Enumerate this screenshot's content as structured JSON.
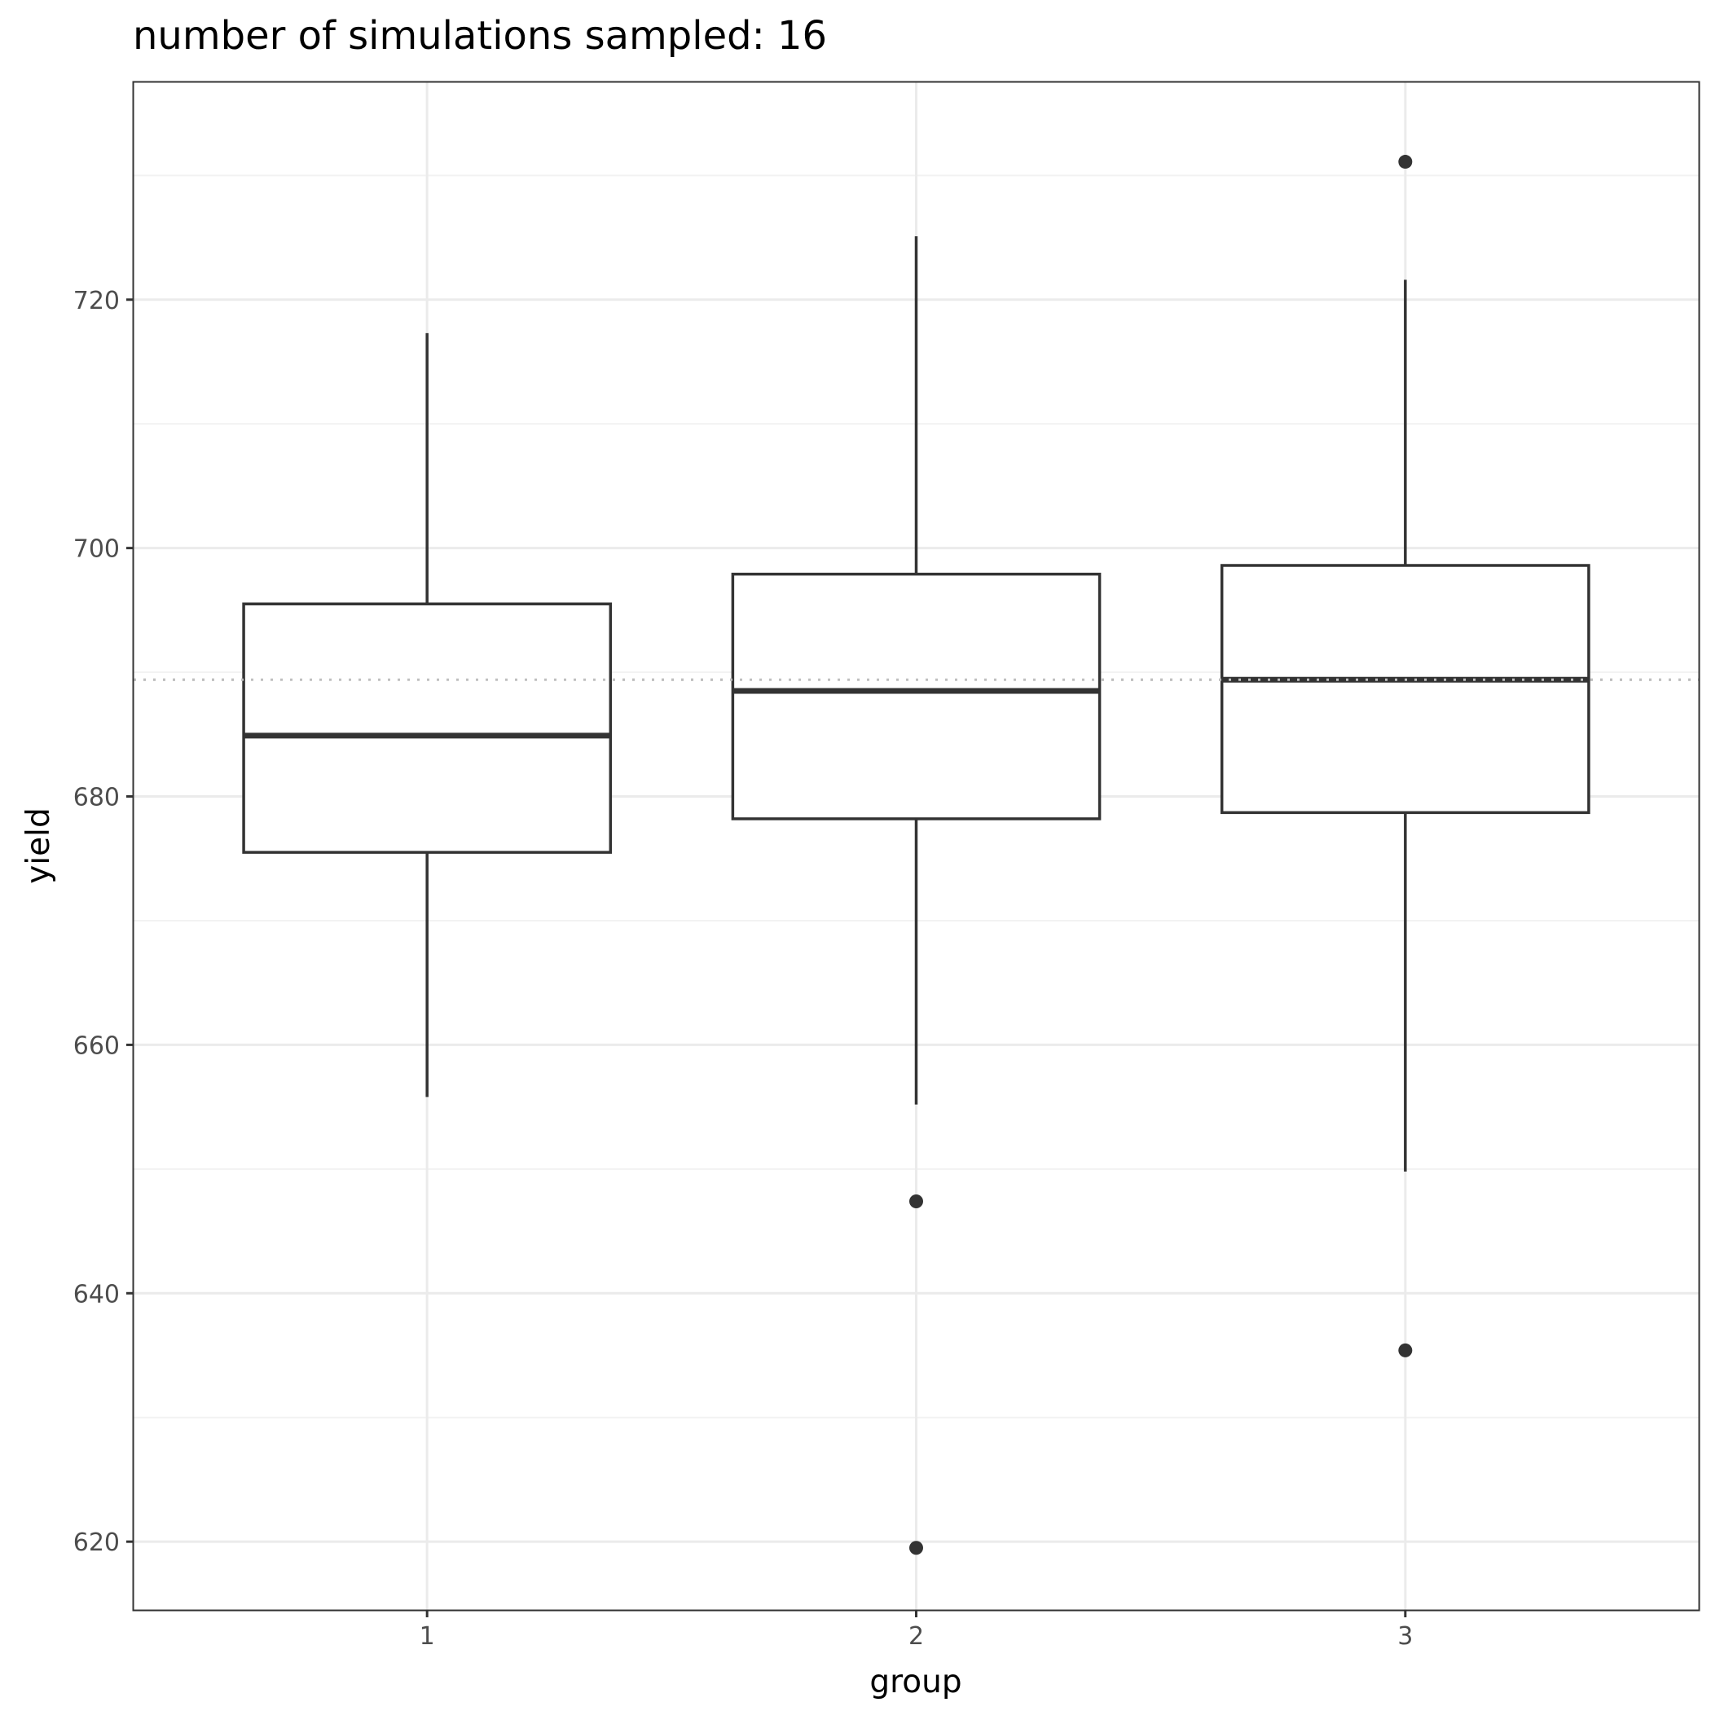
{
  "chart_data": {
    "type": "boxplot",
    "title": "number of simulations sampled: 16",
    "xlabel": "group",
    "ylabel": "yield",
    "categories": [
      "1",
      "2",
      "3"
    ],
    "y_ticks": [
      620,
      640,
      660,
      680,
      700,
      720
    ],
    "ylim": [
      614.5,
      737.5
    ],
    "grid": true,
    "reference_line": {
      "y": 689.4,
      "style": "dotted"
    },
    "boxes": [
      {
        "group": "1",
        "whisker_low": 655.8,
        "q1": 675.5,
        "median": 684.9,
        "q3": 695.5,
        "whisker_high": 717.3,
        "outliers": []
      },
      {
        "group": "2",
        "whisker_low": 655.2,
        "q1": 678.2,
        "median": 688.5,
        "q3": 697.9,
        "whisker_high": 725.1,
        "outliers": [
          647.4,
          619.5
        ]
      },
      {
        "group": "3",
        "whisker_low": 649.8,
        "q1": 678.7,
        "median": 689.4,
        "q3": 698.6,
        "whisker_high": 721.6,
        "outliers": [
          731.1,
          635.4
        ]
      }
    ],
    "colors": {
      "box_line": "#333333",
      "panel_border": "#333333",
      "grid_major": "#ebebeb",
      "grid_minor": "#f2f2f2",
      "reference_line": "#bfbfbf"
    }
  }
}
